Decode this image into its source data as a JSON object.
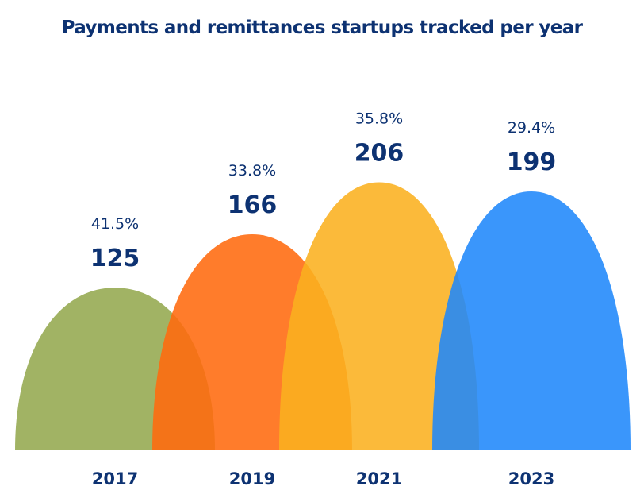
{
  "chart_data": {
    "type": "area",
    "title": "Payments and remittances startups tracked per year",
    "categories": [
      "2017",
      "2019",
      "2021",
      "2023"
    ],
    "values": [
      125,
      166,
      206,
      199
    ],
    "percentages": [
      "41.5%",
      "33.8%",
      "35.8%",
      "29.4%"
    ],
    "colors": [
      "#94a94f",
      "#ff6a0e",
      "#fbb11f",
      "#1f87fb"
    ],
    "label_color": "#0d3272",
    "grid": false
  }
}
